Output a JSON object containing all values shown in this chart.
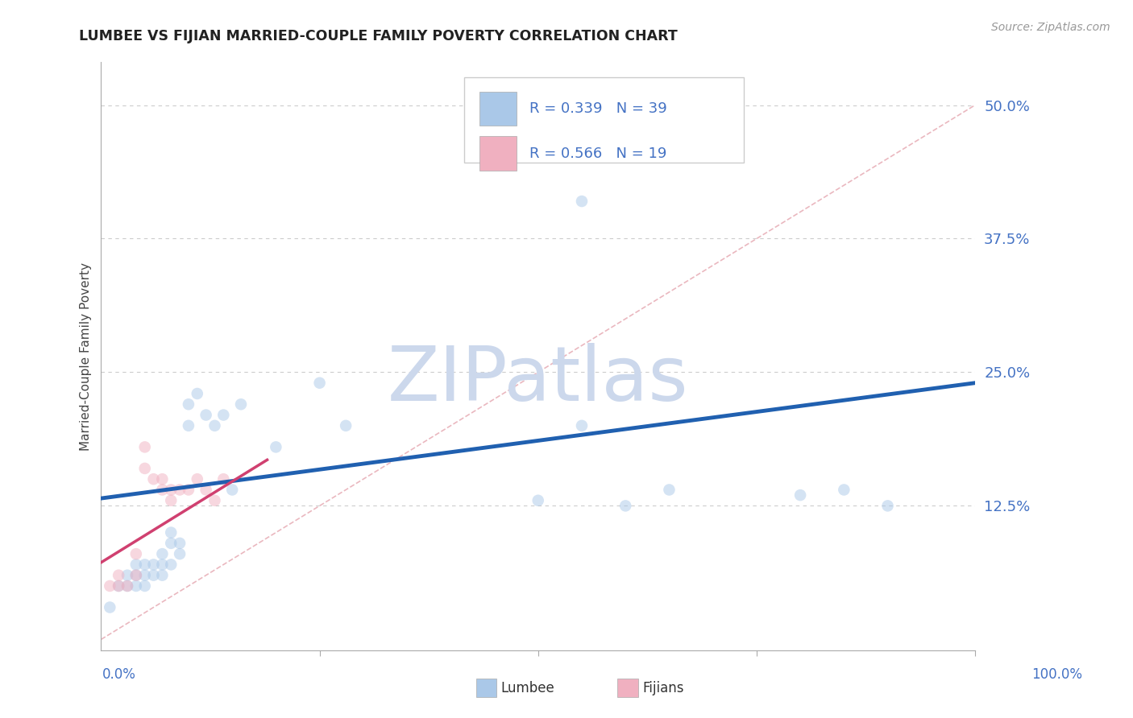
{
  "title": "LUMBEE VS FIJIAN MARRIED-COUPLE FAMILY POVERTY CORRELATION CHART",
  "source": "Source: ZipAtlas.com",
  "ylabel": "Married-Couple Family Poverty",
  "xlim": [
    0.0,
    1.0
  ],
  "ylim": [
    -0.01,
    0.54
  ],
  "yticks": [
    0.0,
    0.125,
    0.25,
    0.375,
    0.5
  ],
  "ytick_labels_right": [
    "",
    "12.5%",
    "25.0%",
    "37.5%",
    "50.0%"
  ],
  "lumbee_R": "0.339",
  "lumbee_N": "39",
  "fijian_R": "0.566",
  "fijian_N": "19",
  "lumbee_color": "#aac8e8",
  "lumbee_line_color": "#2060b0",
  "fijian_color": "#f0b0c0",
  "fijian_line_color": "#d04070",
  "diagonal_color": "#e8b0b8",
  "watermark_color": "#ccd8ec",
  "title_color": "#222222",
  "axis_label_color": "#4472c4",
  "grid_color": "#cccccc",
  "lumbee_x": [
    0.01,
    0.02,
    0.03,
    0.03,
    0.04,
    0.04,
    0.04,
    0.05,
    0.05,
    0.05,
    0.06,
    0.06,
    0.07,
    0.07,
    0.07,
    0.08,
    0.08,
    0.08,
    0.09,
    0.09,
    0.1,
    0.1,
    0.11,
    0.12,
    0.13,
    0.14,
    0.15,
    0.16,
    0.25,
    0.28,
    0.5,
    0.55,
    0.6,
    0.65,
    0.8,
    0.85,
    0.9,
    0.55,
    0.2
  ],
  "lumbee_y": [
    0.03,
    0.05,
    0.05,
    0.06,
    0.05,
    0.06,
    0.07,
    0.05,
    0.06,
    0.07,
    0.06,
    0.07,
    0.06,
    0.07,
    0.08,
    0.07,
    0.09,
    0.1,
    0.08,
    0.09,
    0.2,
    0.22,
    0.23,
    0.21,
    0.2,
    0.21,
    0.14,
    0.22,
    0.24,
    0.2,
    0.13,
    0.2,
    0.125,
    0.14,
    0.135,
    0.14,
    0.125,
    0.41,
    0.18
  ],
  "fijian_x": [
    0.01,
    0.02,
    0.02,
    0.03,
    0.04,
    0.04,
    0.05,
    0.05,
    0.06,
    0.07,
    0.07,
    0.08,
    0.08,
    0.09,
    0.1,
    0.11,
    0.12,
    0.13,
    0.14
  ],
  "fijian_y": [
    0.05,
    0.05,
    0.06,
    0.05,
    0.06,
    0.08,
    0.16,
    0.18,
    0.15,
    0.14,
    0.15,
    0.13,
    0.14,
    0.14,
    0.14,
    0.15,
    0.14,
    0.13,
    0.15
  ],
  "lumbee_reg": [
    0.0,
    0.132,
    1.0,
    0.24
  ],
  "fijian_reg": [
    0.0,
    0.072,
    0.19,
    0.168
  ],
  "marker_size": 110,
  "marker_alpha": 0.5,
  "bg_color": "#ffffff"
}
